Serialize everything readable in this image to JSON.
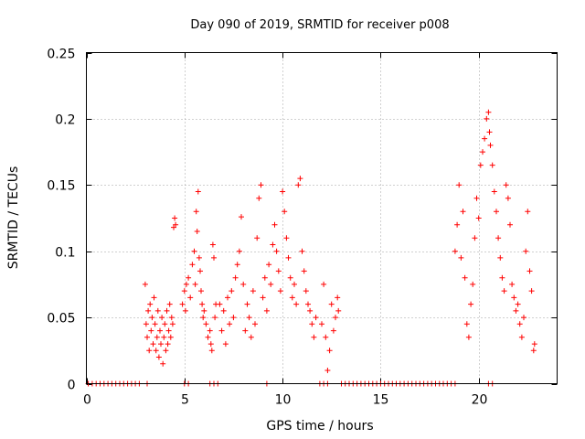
{
  "chart_data": {
    "type": "scatter",
    "title": "Day 090 of 2019, SRMTID for receiver p008",
    "xlabel": "GPS time / hours",
    "ylabel": "SRMTID / TECUs",
    "xlim": [
      0,
      24
    ],
    "ylim": [
      0,
      0.25
    ],
    "xticks": [
      0,
      5,
      10,
      15,
      20
    ],
    "xtick_labels": [
      "0",
      "5",
      "10",
      "15",
      "20"
    ],
    "yticks": [
      0,
      0.05,
      0.1,
      0.15,
      0.2,
      0.25
    ],
    "ytick_labels": [
      "0",
      "0.05",
      "0.1",
      "0.15",
      "0.2",
      "0.25"
    ],
    "grid": true,
    "marker": "+",
    "colors": {
      "series": "#ff0000",
      "grid": "#a0a0a0",
      "axes": "#000000"
    },
    "series": [
      {
        "name": "SRMTID p008",
        "points": [
          [
            0.1,
            0
          ],
          [
            0.3,
            0
          ],
          [
            0.5,
            0
          ],
          [
            0.7,
            0
          ],
          [
            0.9,
            0
          ],
          [
            1.1,
            0
          ],
          [
            1.3,
            0
          ],
          [
            1.5,
            0
          ],
          [
            1.7,
            0
          ],
          [
            1.9,
            0
          ],
          [
            2.1,
            0
          ],
          [
            2.3,
            0
          ],
          [
            2.5,
            0
          ],
          [
            2.7,
            0
          ],
          [
            3.1,
            0
          ],
          [
            5.0,
            0
          ],
          [
            5.2,
            0
          ],
          [
            6.3,
            0
          ],
          [
            6.5,
            0
          ],
          [
            6.7,
            0
          ],
          [
            9.2,
            0
          ],
          [
            11.9,
            0
          ],
          [
            12.1,
            0
          ],
          [
            12.3,
            0
          ],
          [
            13.0,
            0
          ],
          [
            13.2,
            0
          ],
          [
            13.4,
            0
          ],
          [
            13.6,
            0
          ],
          [
            13.8,
            0
          ],
          [
            14.0,
            0
          ],
          [
            14.2,
            0
          ],
          [
            14.4,
            0
          ],
          [
            14.6,
            0
          ],
          [
            14.8,
            0
          ],
          [
            15.0,
            0
          ],
          [
            15.2,
            0
          ],
          [
            15.4,
            0
          ],
          [
            15.6,
            0
          ],
          [
            15.8,
            0
          ],
          [
            16.0,
            0
          ],
          [
            16.2,
            0
          ],
          [
            16.4,
            0
          ],
          [
            16.6,
            0
          ],
          [
            16.8,
            0
          ],
          [
            17.0,
            0
          ],
          [
            17.2,
            0
          ],
          [
            17.4,
            0
          ],
          [
            17.6,
            0
          ],
          [
            17.8,
            0
          ],
          [
            18.0,
            0
          ],
          [
            18.2,
            0
          ],
          [
            18.4,
            0
          ],
          [
            18.6,
            0
          ],
          [
            18.8,
            0
          ],
          [
            20.5,
            0
          ],
          [
            20.7,
            0
          ],
          [
            3.0,
            0.075
          ],
          [
            3.05,
            0.045
          ],
          [
            3.1,
            0.035
          ],
          [
            3.15,
            0.055
          ],
          [
            3.2,
            0.025
          ],
          [
            3.25,
            0.06
          ],
          [
            3.3,
            0.04
          ],
          [
            3.35,
            0.05
          ],
          [
            3.4,
            0.03
          ],
          [
            3.45,
            0.065
          ],
          [
            3.5,
            0.045
          ],
          [
            3.55,
            0.025
          ],
          [
            3.6,
            0.035
          ],
          [
            3.65,
            0.055
          ],
          [
            3.7,
            0.02
          ],
          [
            3.75,
            0.04
          ],
          [
            3.8,
            0.03
          ],
          [
            3.85,
            0.05
          ],
          [
            3.9,
            0.015
          ],
          [
            3.95,
            0.035
          ],
          [
            4.0,
            0.045
          ],
          [
            4.05,
            0.025
          ],
          [
            4.1,
            0.055
          ],
          [
            4.15,
            0.03
          ],
          [
            4.2,
            0.04
          ],
          [
            4.25,
            0.06
          ],
          [
            4.3,
            0.035
          ],
          [
            4.35,
            0.05
          ],
          [
            4.4,
            0.045
          ],
          [
            4.45,
            0.118
          ],
          [
            4.5,
            0.125
          ],
          [
            4.55,
            0.12
          ],
          [
            4.9,
            0.06
          ],
          [
            5.0,
            0.07
          ],
          [
            5.05,
            0.055
          ],
          [
            5.1,
            0.075
          ],
          [
            5.2,
            0.08
          ],
          [
            5.3,
            0.065
          ],
          [
            5.4,
            0.09
          ],
          [
            5.5,
            0.1
          ],
          [
            5.55,
            0.075
          ],
          [
            5.6,
            0.13
          ],
          [
            5.65,
            0.115
          ],
          [
            5.7,
            0.145
          ],
          [
            5.75,
            0.095
          ],
          [
            5.8,
            0.085
          ],
          [
            5.85,
            0.07
          ],
          [
            5.9,
            0.06
          ],
          [
            5.95,
            0.05
          ],
          [
            6.0,
            0.055
          ],
          [
            6.1,
            0.045
          ],
          [
            6.2,
            0.035
          ],
          [
            6.3,
            0.04
          ],
          [
            6.35,
            0.03
          ],
          [
            6.4,
            0.025
          ],
          [
            6.45,
            0.105
          ],
          [
            6.5,
            0.095
          ],
          [
            6.55,
            0.05
          ],
          [
            6.6,
            0.06
          ],
          [
            6.8,
            0.06
          ],
          [
            6.9,
            0.04
          ],
          [
            7.0,
            0.055
          ],
          [
            7.1,
            0.03
          ],
          [
            7.2,
            0.065
          ],
          [
            7.3,
            0.045
          ],
          [
            7.4,
            0.07
          ],
          [
            7.5,
            0.05
          ],
          [
            7.6,
            0.08
          ],
          [
            7.7,
            0.09
          ],
          [
            7.8,
            0.1
          ],
          [
            7.9,
            0.126
          ],
          [
            8.0,
            0.075
          ],
          [
            8.1,
            0.04
          ],
          [
            8.2,
            0.06
          ],
          [
            8.3,
            0.05
          ],
          [
            8.4,
            0.035
          ],
          [
            8.5,
            0.07
          ],
          [
            8.6,
            0.045
          ],
          [
            8.7,
            0.11
          ],
          [
            8.8,
            0.14
          ],
          [
            8.9,
            0.15
          ],
          [
            9.0,
            0.065
          ],
          [
            9.1,
            0.08
          ],
          [
            9.2,
            0.055
          ],
          [
            9.3,
            0.09
          ],
          [
            9.4,
            0.075
          ],
          [
            9.5,
            0.105
          ],
          [
            9.6,
            0.12
          ],
          [
            9.7,
            0.1
          ],
          [
            9.8,
            0.085
          ],
          [
            9.9,
            0.07
          ],
          [
            10.0,
            0.145
          ],
          [
            10.1,
            0.13
          ],
          [
            10.2,
            0.11
          ],
          [
            10.3,
            0.095
          ],
          [
            10.4,
            0.08
          ],
          [
            10.5,
            0.065
          ],
          [
            10.6,
            0.075
          ],
          [
            10.7,
            0.06
          ],
          [
            10.8,
            0.15
          ],
          [
            10.9,
            0.155
          ],
          [
            11.0,
            0.1
          ],
          [
            11.1,
            0.085
          ],
          [
            11.2,
            0.07
          ],
          [
            11.3,
            0.06
          ],
          [
            11.4,
            0.055
          ],
          [
            11.5,
            0.045
          ],
          [
            11.6,
            0.035
          ],
          [
            11.7,
            0.05
          ],
          [
            12.0,
            0.045
          ],
          [
            12.1,
            0.075
          ],
          [
            12.2,
            0.035
          ],
          [
            12.3,
            0.01
          ],
          [
            12.4,
            0.025
          ],
          [
            12.5,
            0.06
          ],
          [
            12.6,
            0.04
          ],
          [
            12.7,
            0.05
          ],
          [
            12.8,
            0.065
          ],
          [
            12.85,
            0.055
          ],
          [
            18.8,
            0.1
          ],
          [
            18.9,
            0.12
          ],
          [
            19.0,
            0.15
          ],
          [
            19.1,
            0.095
          ],
          [
            19.2,
            0.13
          ],
          [
            19.3,
            0.08
          ],
          [
            19.4,
            0.045
          ],
          [
            19.5,
            0.035
          ],
          [
            19.6,
            0.06
          ],
          [
            19.7,
            0.075
          ],
          [
            19.8,
            0.11
          ],
          [
            19.9,
            0.14
          ],
          [
            20.0,
            0.125
          ],
          [
            20.1,
            0.165
          ],
          [
            20.2,
            0.175
          ],
          [
            20.3,
            0.185
          ],
          [
            20.4,
            0.2
          ],
          [
            20.5,
            0.205
          ],
          [
            20.55,
            0.19
          ],
          [
            20.6,
            0.18
          ],
          [
            20.7,
            0.165
          ],
          [
            20.8,
            0.145
          ],
          [
            20.9,
            0.13
          ],
          [
            21.0,
            0.11
          ],
          [
            21.1,
            0.095
          ],
          [
            21.2,
            0.08
          ],
          [
            21.3,
            0.07
          ],
          [
            21.4,
            0.15
          ],
          [
            21.5,
            0.14
          ],
          [
            21.6,
            0.12
          ],
          [
            21.7,
            0.075
          ],
          [
            21.8,
            0.065
          ],
          [
            21.9,
            0.055
          ],
          [
            22.0,
            0.06
          ],
          [
            22.1,
            0.045
          ],
          [
            22.2,
            0.035
          ],
          [
            22.3,
            0.05
          ],
          [
            22.4,
            0.1
          ],
          [
            22.5,
            0.13
          ],
          [
            22.6,
            0.085
          ],
          [
            22.7,
            0.07
          ],
          [
            22.8,
            0.025
          ],
          [
            22.85,
            0.03
          ]
        ]
      }
    ]
  }
}
